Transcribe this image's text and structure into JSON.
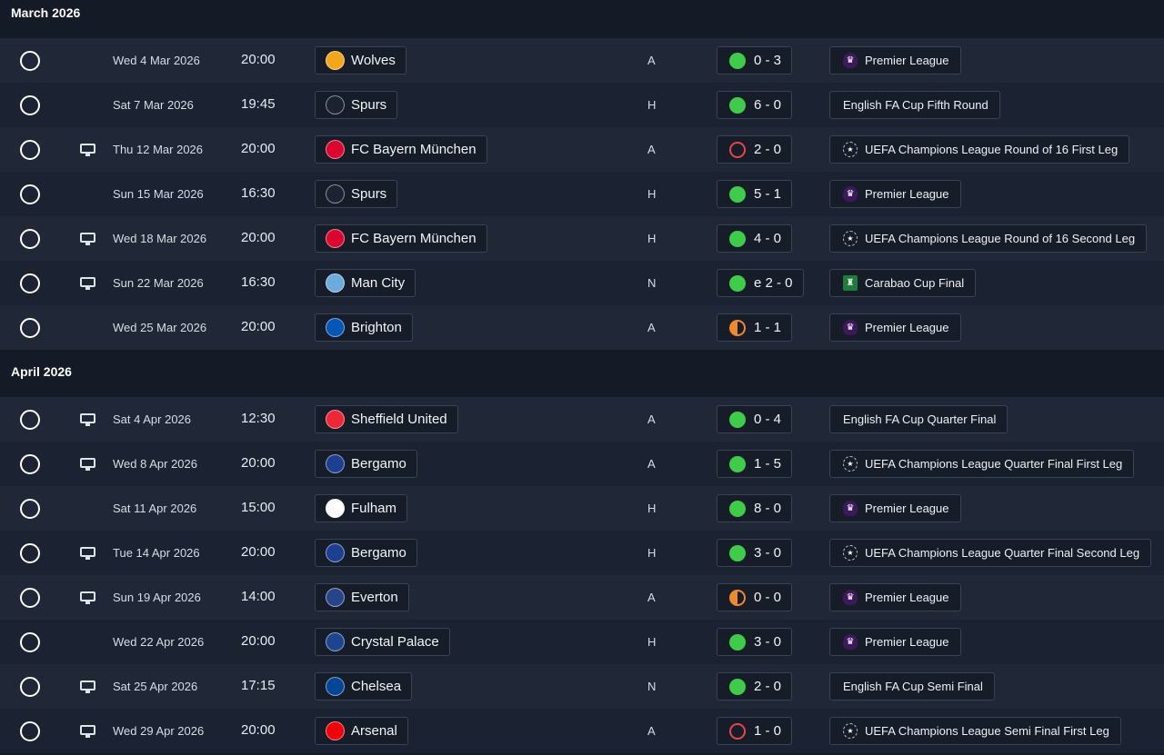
{
  "months": [
    {
      "title": "March 2026",
      "matches": [
        {
          "tv": false,
          "date": "Wed 4 Mar 2026",
          "time": "20:00",
          "team": "Wolves",
          "badge_color": "#f2a71b",
          "badge_icon": "wolf-badge-icon",
          "venue": "A",
          "result": "win",
          "score": "0 - 3",
          "competition": "Premier League",
          "comp_icon": "premier-league-icon"
        },
        {
          "tv": false,
          "date": "Sat 7 Mar 2026",
          "time": "19:45",
          "team": "Spurs",
          "badge_color": "#1b2231",
          "badge_icon": "spurs-badge-icon",
          "venue": "H",
          "result": "win",
          "score": "6 - 0",
          "competition": "English FA Cup Fifth Round",
          "comp_icon": ""
        },
        {
          "tv": true,
          "date": "Thu 12 Mar 2026",
          "time": "20:00",
          "team": "FC Bayern München",
          "badge_color": "#dc052d",
          "badge_icon": "bayern-badge-icon",
          "venue": "A",
          "result": "loss",
          "score": "2 - 0",
          "competition": "UEFA Champions League Round of 16  First Leg",
          "comp_icon": "champions-league-icon"
        },
        {
          "tv": false,
          "date": "Sun 15 Mar 2026",
          "time": "16:30",
          "team": "Spurs",
          "badge_color": "#1b2231",
          "badge_icon": "spurs-badge-icon",
          "venue": "H",
          "result": "win",
          "score": "5 - 1",
          "competition": "Premier League",
          "comp_icon": "premier-league-icon"
        },
        {
          "tv": true,
          "date": "Wed 18 Mar 2026",
          "time": "20:00",
          "team": "FC Bayern München",
          "badge_color": "#dc052d",
          "badge_icon": "bayern-badge-icon",
          "venue": "H",
          "result": "win",
          "score": "4 - 0",
          "competition": "UEFA Champions League Round of 16  Second Leg",
          "comp_icon": "champions-league-icon"
        },
        {
          "tv": true,
          "date": "Sun 22 Mar 2026",
          "time": "16:30",
          "team": "Man City",
          "badge_color": "#6cabdd",
          "badge_icon": "man-city-badge-icon",
          "venue": "N",
          "result": "win",
          "score": "e 2 - 0",
          "competition": "Carabao Cup Final",
          "comp_icon": "carabao-cup-icon"
        },
        {
          "tv": false,
          "date": "Wed 25 Mar 2026",
          "time": "20:00",
          "team": "Brighton",
          "badge_color": "#0057b8",
          "badge_icon": "brighton-badge-icon",
          "venue": "A",
          "result": "draw",
          "score": "1 - 1",
          "competition": "Premier League",
          "comp_icon": "premier-league-icon"
        }
      ]
    },
    {
      "title": "April 2026",
      "matches": [
        {
          "tv": true,
          "date": "Sat 4 Apr 2026",
          "time": "12:30",
          "team": "Sheffield United",
          "badge_color": "#ee2737",
          "badge_icon": "sheffield-united-badge-icon",
          "venue": "A",
          "result": "win",
          "score": "0 - 4",
          "competition": "English FA Cup Quarter Final",
          "comp_icon": ""
        },
        {
          "tv": true,
          "date": "Wed 8 Apr 2026",
          "time": "20:00",
          "team": "Bergamo",
          "badge_color": "#1d3f8f",
          "badge_icon": "bergamo-badge-icon",
          "venue": "A",
          "result": "win",
          "score": "1 - 5",
          "competition": "UEFA Champions League Quarter Final First Leg",
          "comp_icon": "champions-league-icon"
        },
        {
          "tv": false,
          "date": "Sat 11 Apr 2026",
          "time": "15:00",
          "team": "Fulham",
          "badge_color": "#ffffff",
          "badge_icon": "fulham-badge-icon",
          "venue": "H",
          "result": "win",
          "score": "8 - 0",
          "competition": "Premier League",
          "comp_icon": "premier-league-icon"
        },
        {
          "tv": true,
          "date": "Tue 14 Apr 2026",
          "time": "20:00",
          "team": "Bergamo",
          "badge_color": "#1d3f8f",
          "badge_icon": "bergamo-badge-icon",
          "venue": "H",
          "result": "win",
          "score": "3 - 0",
          "competition": "UEFA Champions League Quarter Final Second Leg",
          "comp_icon": "champions-league-icon"
        },
        {
          "tv": true,
          "date": "Sun 19 Apr 2026",
          "time": "14:00",
          "team": "Everton",
          "badge_color": "#274488",
          "badge_icon": "everton-badge-icon",
          "venue": "A",
          "result": "draw",
          "score": "0 - 0",
          "competition": "Premier League",
          "comp_icon": "premier-league-icon"
        },
        {
          "tv": false,
          "date": "Wed 22 Apr 2026",
          "time": "20:00",
          "team": "Crystal Palace",
          "badge_color": "#1b458f",
          "badge_icon": "crystal-palace-badge-icon",
          "venue": "H",
          "result": "win",
          "score": "3 - 0",
          "competition": "Premier League",
          "comp_icon": "premier-league-icon"
        },
        {
          "tv": true,
          "date": "Sat 25 Apr 2026",
          "time": "17:15",
          "team": "Chelsea",
          "badge_color": "#034694",
          "badge_icon": "chelsea-badge-icon",
          "venue": "N",
          "result": "win",
          "score": "2 - 0",
          "competition": "English FA Cup Semi Final",
          "comp_icon": ""
        },
        {
          "tv": true,
          "date": "Wed 29 Apr 2026",
          "time": "20:00",
          "team": "Arsenal",
          "badge_color": "#ef0107",
          "badge_icon": "arsenal-badge-icon",
          "venue": "A",
          "result": "loss",
          "score": "1 - 0",
          "competition": "UEFA Champions League Semi Final First Leg",
          "comp_icon": "champions-league-icon"
        }
      ]
    }
  ]
}
